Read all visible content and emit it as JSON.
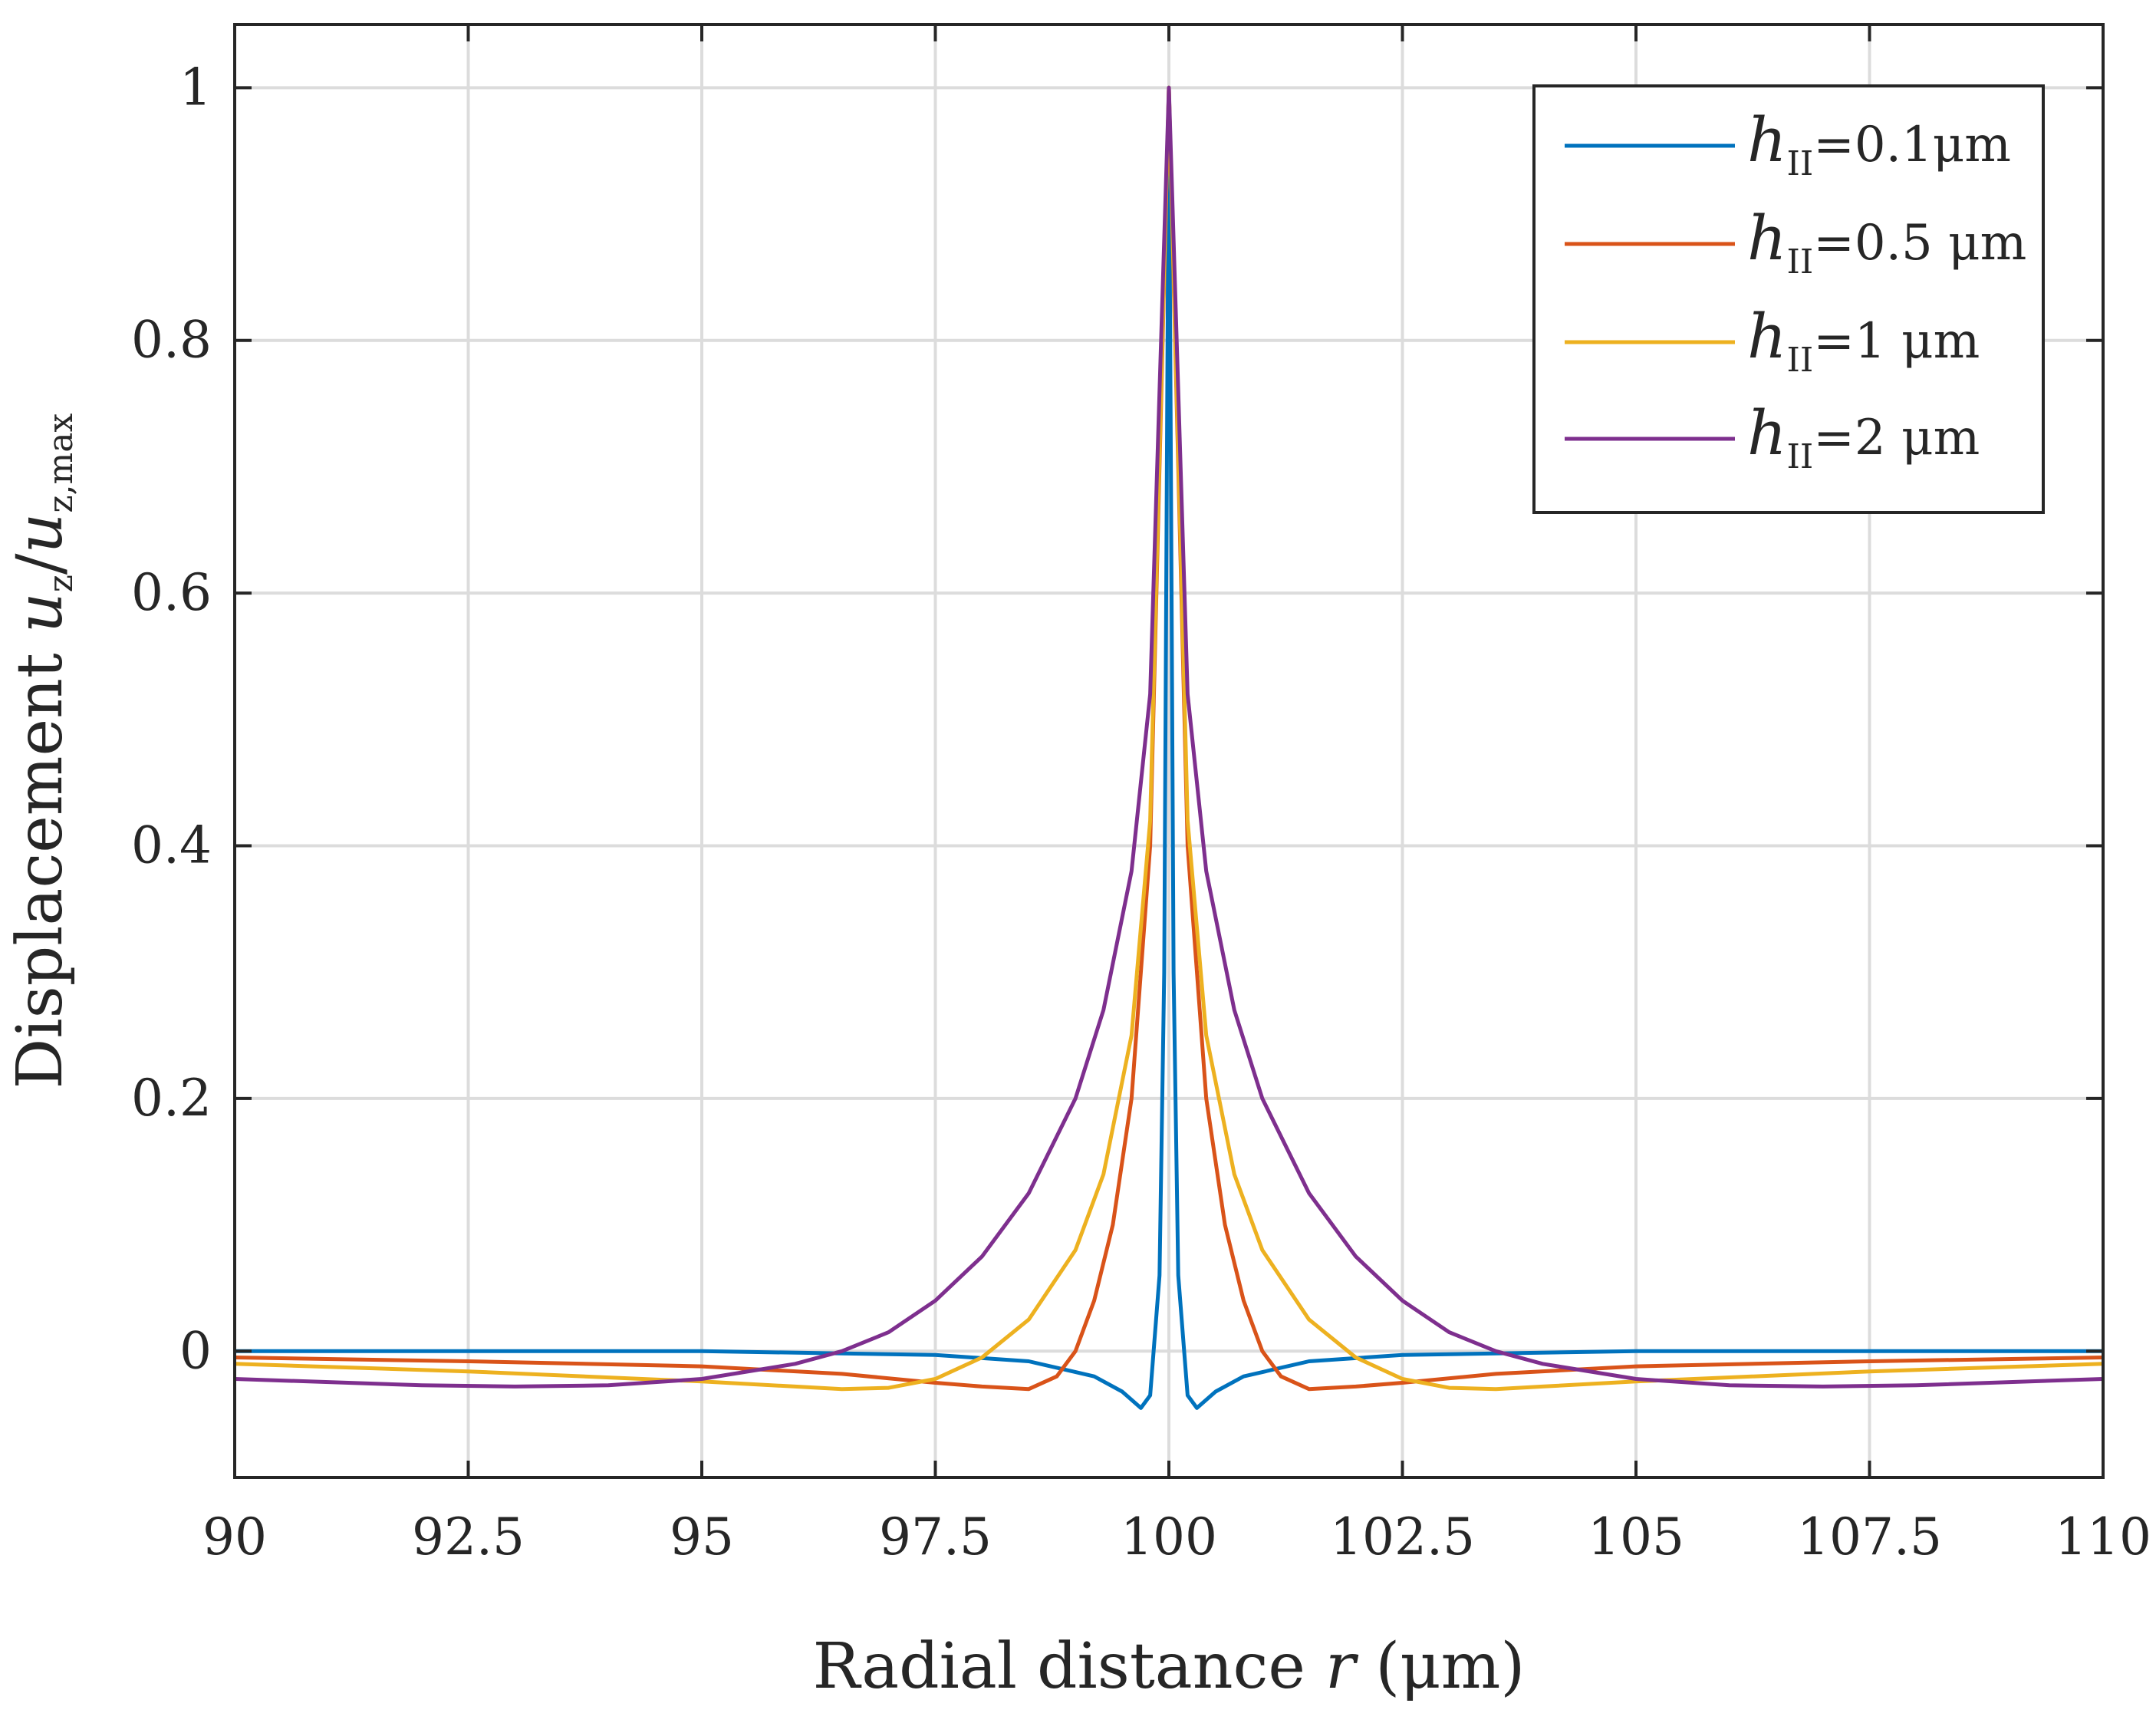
{
  "chart_data": {
    "type": "line",
    "xlabel": {
      "text": "Radial distance ",
      "var": "r",
      "unit": " (μm)"
    },
    "ylabel": {
      "prefix": "Displacement ",
      "num": "u",
      "num_sub": "z",
      "slash": "/",
      "den": "u",
      "den_sub": "z,max"
    },
    "xlim": [
      90,
      110
    ],
    "ylim": [
      -0.1,
      1.05
    ],
    "xticks": [
      90,
      92.5,
      95,
      97.5,
      100,
      102.5,
      105,
      107.5,
      110
    ],
    "xtick_labels": [
      "90",
      "92.5",
      "95",
      "97.5",
      "100",
      "102.5",
      "105",
      "107.5",
      "110"
    ],
    "yticks": [
      0,
      0.2,
      0.4,
      0.6,
      0.8,
      1
    ],
    "ytick_labels": [
      "0",
      "0.2",
      "0.4",
      "0.6",
      "0.8",
      "1"
    ],
    "grid": true,
    "legend_position": "top-right",
    "series": [
      {
        "name": "h_II=0.1μm",
        "legend": {
          "var": "h",
          "sub": "II",
          "rest": "=0.1μm"
        },
        "color": "#0072BD",
        "x": [
          90,
          95,
          97.5,
          98.5,
          99.2,
          99.5,
          99.7,
          99.8,
          99.9,
          99.95,
          100,
          100.05,
          100.1,
          100.2,
          100.3,
          100.5,
          100.8,
          101.5,
          102.5,
          105,
          110
        ],
        "y": [
          0,
          0,
          -0.003,
          -0.008,
          -0.02,
          -0.032,
          -0.045,
          -0.035,
          0.06,
          0.3,
          1.0,
          0.3,
          0.06,
          -0.035,
          -0.045,
          -0.032,
          -0.02,
          -0.008,
          -0.003,
          0,
          0
        ]
      },
      {
        "name": "h_II=0.5 μm",
        "legend": {
          "var": "h",
          "sub": "II",
          "rest": "=0.5 μm"
        },
        "color": "#D95319",
        "x": [
          90,
          92.5,
          95,
          96.5,
          97.5,
          98,
          98.5,
          98.8,
          99,
          99.2,
          99.4,
          99.6,
          99.8,
          100,
          100.2,
          100.4,
          100.6,
          100.8,
          101,
          101.2,
          101.5,
          102,
          102.5,
          103.5,
          105,
          107.5,
          110
        ],
        "y": [
          -0.005,
          -0.008,
          -0.012,
          -0.018,
          -0.025,
          -0.028,
          -0.03,
          -0.02,
          0.0,
          0.04,
          0.1,
          0.2,
          0.4,
          1.0,
          0.4,
          0.2,
          0.1,
          0.04,
          0.0,
          -0.02,
          -0.03,
          -0.028,
          -0.025,
          -0.018,
          -0.012,
          -0.008,
          -0.005
        ]
      },
      {
        "name": "h_II=1 μm",
        "legend": {
          "var": "h",
          "sub": "II",
          "rest": "=1 μm"
        },
        "color": "#EDB120",
        "x": [
          90,
          92.5,
          95,
          96,
          96.5,
          97,
          97.5,
          98,
          98.5,
          99,
          99.3,
          99.6,
          99.8,
          100,
          100.2,
          100.4,
          100.7,
          101,
          101.5,
          102,
          102.5,
          103,
          103.5,
          104,
          105,
          107.5,
          110
        ],
        "y": [
          -0.01,
          -0.016,
          -0.024,
          -0.028,
          -0.03,
          -0.029,
          -0.022,
          -0.005,
          0.025,
          0.08,
          0.14,
          0.25,
          0.42,
          1.0,
          0.42,
          0.25,
          0.14,
          0.08,
          0.025,
          -0.005,
          -0.022,
          -0.029,
          -0.03,
          -0.028,
          -0.024,
          -0.016,
          -0.01
        ]
      },
      {
        "name": "h_II=2 μm",
        "legend": {
          "var": "h",
          "sub": "II",
          "rest": "=2 μm"
        },
        "color": "#7E2F8E",
        "x": [
          90,
          92,
          93,
          94,
          95,
          96,
          96.5,
          97,
          97.5,
          98,
          98.5,
          99,
          99.3,
          99.6,
          99.8,
          100,
          100.2,
          100.4,
          100.7,
          101,
          101.5,
          102,
          102.5,
          103,
          103.5,
          104,
          105,
          106,
          107,
          108,
          110
        ],
        "y": [
          -0.022,
          -0.027,
          -0.028,
          -0.027,
          -0.022,
          -0.01,
          0.0,
          0.015,
          0.04,
          0.075,
          0.125,
          0.2,
          0.27,
          0.38,
          0.52,
          1.0,
          0.52,
          0.38,
          0.27,
          0.2,
          0.125,
          0.075,
          0.04,
          0.015,
          0.0,
          -0.01,
          -0.022,
          -0.027,
          -0.028,
          -0.027,
          -0.022
        ]
      }
    ]
  }
}
